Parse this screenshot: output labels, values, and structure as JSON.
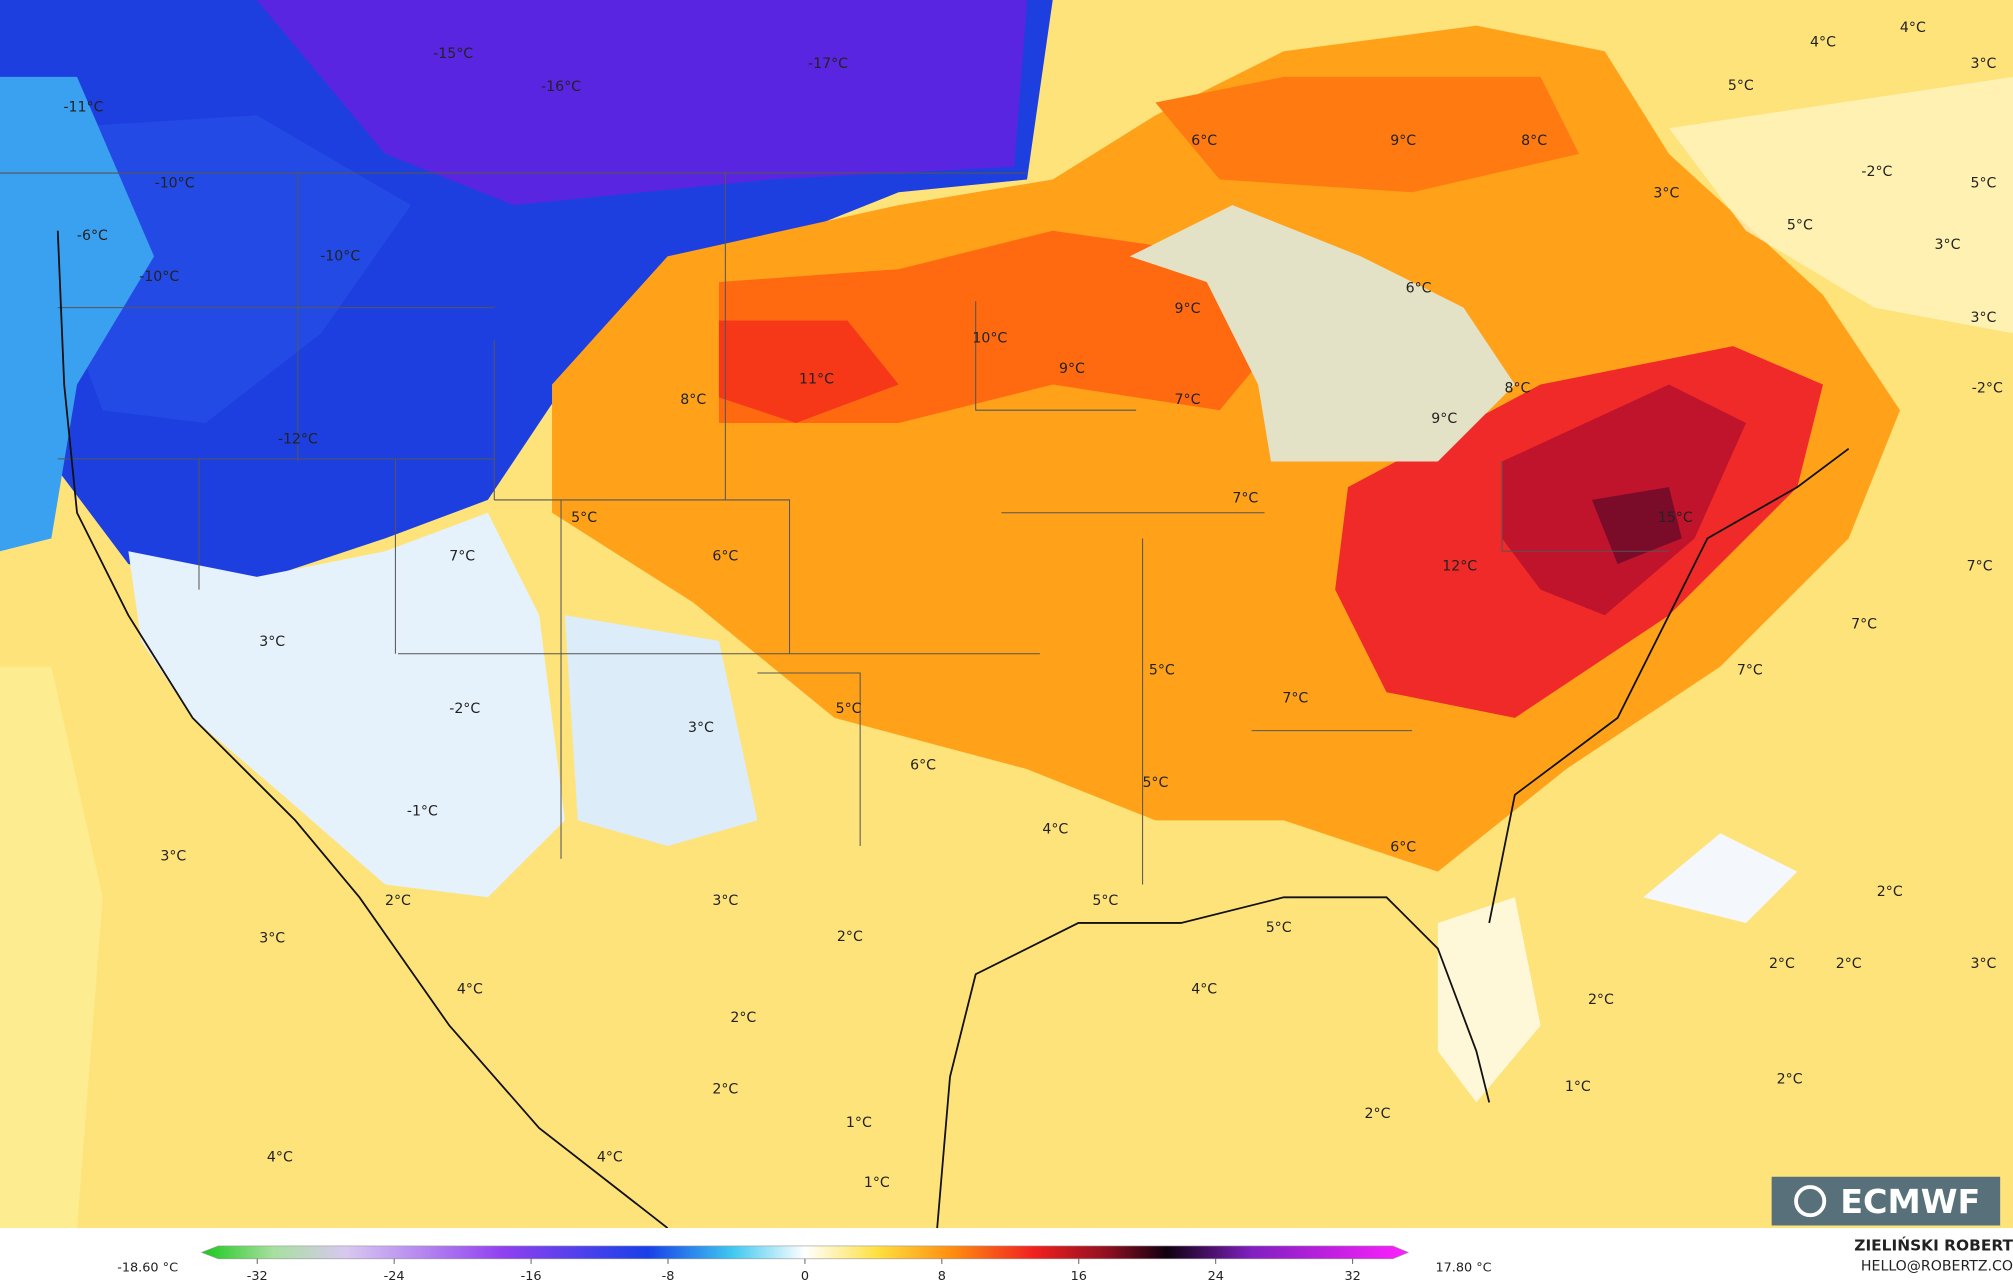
{
  "map": {
    "labels": [
      "-15°C",
      "-16°C",
      "-17°C",
      "-11°C",
      "-10°C",
      "-6°C",
      "-10°C",
      "-10°C",
      "-12°C",
      "6°C",
      "9°C",
      "8°C",
      "4°C",
      "4°C",
      "3°C",
      "5°C",
      "-2°C",
      "3°C",
      "5°C",
      "5°C",
      "3°C",
      "3°C",
      "6°C",
      "9°C",
      "10°C",
      "11°C",
      "9°C",
      "8°C",
      "7°C",
      "8°C",
      "9°C",
      "-2°C",
      "7°C",
      "15°C",
      "12°C",
      "7°C",
      "7°C",
      "7°C",
      "5°C",
      "7°C",
      "6°C",
      "3°C",
      "5°C",
      "7°C",
      "-2°C",
      "5°C",
      "3°C",
      "6°C",
      "5°C",
      "-1°C",
      "4°C",
      "6°C",
      "3°C",
      "2°C",
      "5°C",
      "5°C",
      "3°C",
      "2°C",
      "2°C",
      "3°C",
      "2°C",
      "2°C",
      "3°C",
      "4°C",
      "4°C",
      "2°C",
      "2°C",
      "2°C",
      "2°C",
      "2°C",
      "1°C",
      "1°C",
      "4°C",
      "4°C",
      "1°C"
    ]
  },
  "colorbar": {
    "min_label": "-18.60 °C",
    "max_label": "17.80 °C",
    "range": [
      -36,
      36
    ],
    "ticks": [
      -32,
      -24,
      -16,
      -8,
      0,
      8,
      16,
      24,
      32
    ]
  },
  "credit": {
    "name": "ZIELIŃSKI ROBERT",
    "email": "HELLO@ROBERTZ.CO"
  },
  "logo": "ECMWF"
}
